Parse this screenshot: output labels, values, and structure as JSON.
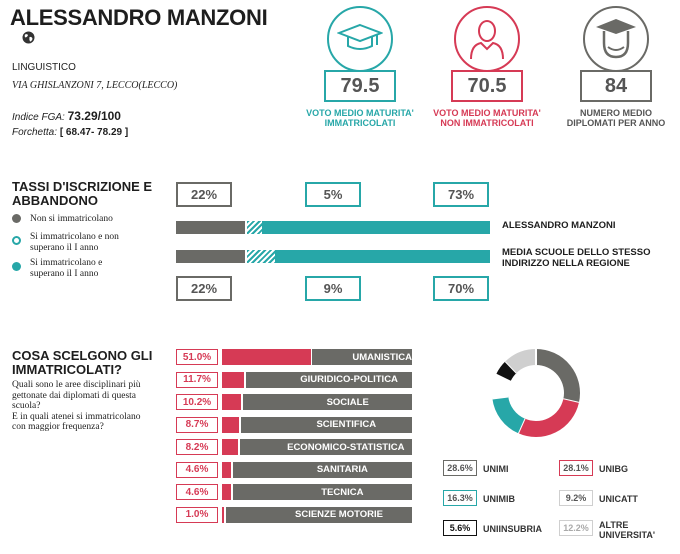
{
  "school": {
    "name": "ALESSANDRO MANZONI",
    "track": "LINGUISTICO",
    "address": "VIA GHISLANZONI 7, LECCO(LECCO)",
    "fga_label": "Indice FGA:",
    "fga_value": "73.29/100",
    "forchetta_label": "Forchetta:",
    "forchetta_value": "[ 68.47- 78.29 ]"
  },
  "kpis": [
    {
      "value": "79.5",
      "label1": "VOTO MEDIO MATURITA'",
      "label2": "IMMATRICOLATI",
      "color": "#27a7a8",
      "icon": "graduation-cap-icon"
    },
    {
      "value": "70.5",
      "label1": "VOTO MEDIO MATURITA'",
      "label2": "NON IMMATRICOLATI",
      "color": "#d63a55",
      "icon": "person-icon"
    },
    {
      "value": "84",
      "label1": "NUMERO MEDIO",
      "label2": "DIPLOMATI PER ANNO",
      "color": "#6a6a66",
      "icon": "graduate-face-icon"
    }
  ],
  "enrollment": {
    "title1": "TASSI D'ISCRIZIONE E",
    "title2": "ABBANDONO",
    "legend": [
      {
        "line1": "Non si immatricolano",
        "line2": "",
        "color": "#6a6a66"
      },
      {
        "line1": "Si immatricolano e non",
        "line2": "superano il I anno",
        "color": "#27a7a8"
      },
      {
        "line1": "Si immatricolano e",
        "line2": "superano il I anno",
        "color": "#27a7a8"
      }
    ],
    "school_row": {
      "label": "ALESSANDRO MANZONI",
      "not_enrolled": "22%",
      "enrolled_fail": "5%",
      "enrolled_pass": "73%",
      "values": [
        22,
        5,
        73
      ]
    },
    "region_row": {
      "label1": "MEDIA SCUOLE DELLO STESSO",
      "label2": "INDIRIZZO NELLA REGIONE",
      "not_enrolled": "22%",
      "enrolled_fail": "9%",
      "enrolled_pass": "70%",
      "values": [
        22,
        9,
        70
      ]
    },
    "colors": {
      "grey": "#6a6a66",
      "teal": "#27a7a8"
    }
  },
  "choices": {
    "title1": "COSA SCELGONO GLI",
    "title2": "IMMATRICOLATI?",
    "q1": "Quali sono le aree disciplinari più",
    "q2": "gettonate dai diplomati di questa",
    "q3": "scuola?",
    "q4": "E in quali atenei si immatricolano",
    "q5": "con maggior frequenza?",
    "areas": [
      {
        "pct": "51.0%",
        "value": 51.0,
        "name": "UMANISTICA"
      },
      {
        "pct": "11.7%",
        "value": 11.7,
        "name": "GIURIDICO-POLITICA"
      },
      {
        "pct": "10.2%",
        "value": 10.2,
        "name": "SOCIALE"
      },
      {
        "pct": "8.7%",
        "value": 8.7,
        "name": "SCIENTIFICA"
      },
      {
        "pct": "8.2%",
        "value": 8.2,
        "name": "ECONOMICO-STATISTICA"
      },
      {
        "pct": "4.6%",
        "value": 4.6,
        "name": "SANITARIA"
      },
      {
        "pct": "4.6%",
        "value": 4.6,
        "name": "TECNICA"
      },
      {
        "pct": "1.0%",
        "value": 1.0,
        "name": "SCIENZE MOTORIE"
      }
    ],
    "universities": [
      {
        "pct": "28.6%",
        "name1": "UNIMI",
        "name2": "",
        "value": 28.6,
        "color": "#6a6a66"
      },
      {
        "pct": "28.1%",
        "name1": "UNIBG",
        "name2": "",
        "value": 28.1,
        "color": "#d63a55"
      },
      {
        "pct": "16.3%",
        "name1": "UNIMIB",
        "name2": "",
        "value": 16.3,
        "color": "#27a7a8"
      },
      {
        "pct": "9.2%",
        "name1": "UNICATT",
        "name2": "",
        "value": 9.2,
        "color": "#ffffff"
      },
      {
        "pct": "5.6%",
        "name1": "UNIINSUBRIA",
        "name2": "",
        "value": 5.6,
        "color": "#111111"
      },
      {
        "pct": "12.2%",
        "name1": "ALTRE",
        "name2": "UNIVERSITA'",
        "value": 12.2,
        "color": "#cfcfcf"
      }
    ]
  },
  "chart_data": {
    "type": "pie",
    "categories": [
      "UNIMI",
      "UNIBG",
      "UNIMIB",
      "UNICATT",
      "UNIINSUBRIA",
      "ALTRE UNIVERSITA'"
    ],
    "values": [
      28.6,
      28.1,
      16.3,
      9.2,
      5.6,
      12.2
    ]
  }
}
